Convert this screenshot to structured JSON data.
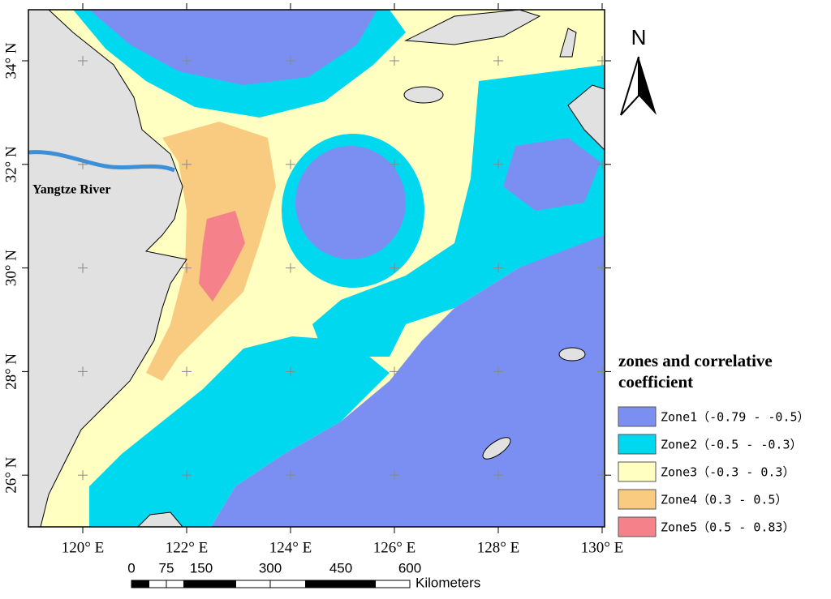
{
  "map": {
    "lon_labels": [
      "120° E",
      "122° E",
      "124° E",
      "126° E",
      "128° E",
      "130° E"
    ],
    "lat_labels": [
      "34° N",
      "32° N",
      "30° N",
      "28° N",
      "26° N"
    ],
    "river_label": "Yangtze River",
    "north": "N",
    "legend": {
      "title": [
        "zones and correlative",
        " coefficient"
      ],
      "items": [
        {
          "label": "Zone1（-0.79  - -0.5）",
          "color": "#7b8ff2"
        },
        {
          "label": "Zone2（-0.5 - -0.3）",
          "color": "#00d8f0"
        },
        {
          "label": "Zone3（-0.3 - 0.3）",
          "color": "#ffffc2"
        },
        {
          "label": "Zone4（0.3 - 0.5）",
          "color": "#f9cb80"
        },
        {
          "label": "Zone5（0.5 - 0.83）",
          "color": "#f5828b"
        }
      ]
    },
    "scale": {
      "labels": [
        "0",
        "75",
        "150",
        "300",
        "450",
        "600"
      ],
      "unit": "Kilometers"
    }
  }
}
